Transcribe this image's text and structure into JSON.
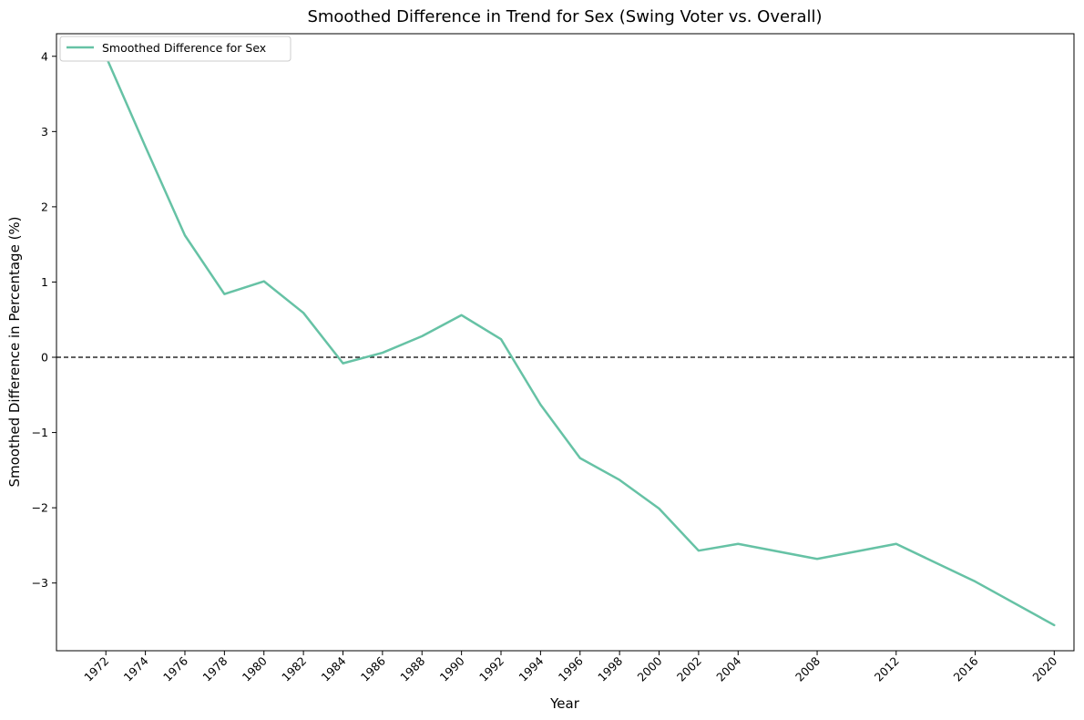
{
  "chart_data": {
    "type": "line",
    "title": "Smoothed Difference in Trend for Sex (Swing Voter vs. Overall)",
    "xlabel": "Year",
    "ylabel": "Smoothed Difference in Percentage (%)",
    "xlim": [
      1969.5,
      2021.0
    ],
    "ylim": [
      -3.9,
      4.3
    ],
    "x_ticks": [
      1972,
      1974,
      1976,
      1978,
      1980,
      1982,
      1984,
      1986,
      1988,
      1990,
      1992,
      1994,
      1996,
      1998,
      2000,
      2002,
      2004,
      2008,
      2012,
      2016,
      2020
    ],
    "x_tick_labels": [
      "1972",
      "1974",
      "1976",
      "1978",
      "1980",
      "1982",
      "1984",
      "1986",
      "1988",
      "1990",
      "1992",
      "1994",
      "1996",
      "1998",
      "2000",
      "2002",
      "2004",
      "2008",
      "2012",
      "2016",
      "2020"
    ],
    "y_ticks": [
      -3,
      -2,
      -1,
      0,
      1,
      2,
      3,
      4
    ],
    "y_tick_labels": [
      "−3",
      "−2",
      "−1",
      "0",
      "1",
      "2",
      "3",
      "4"
    ],
    "reference_line": {
      "y": 0,
      "style": "dashed",
      "color": "#000000"
    },
    "grid": false,
    "legend": {
      "position": "top-left"
    },
    "series": [
      {
        "name": "Smoothed Difference for Sex",
        "color": "#66c2a5",
        "x": [
          1972,
          1974,
          1976,
          1978,
          1980,
          1982,
          1984,
          1986,
          1988,
          1990,
          1992,
          1994,
          1996,
          1998,
          2000,
          2002,
          2004,
          2008,
          2012,
          2016,
          2020
        ],
        "y": [
          4.0,
          2.8,
          1.62,
          0.84,
          1.01,
          0.59,
          -0.08,
          0.06,
          0.28,
          0.56,
          0.24,
          -0.63,
          -1.34,
          -1.63,
          -2.01,
          -2.57,
          -2.48,
          -2.68,
          -2.48,
          -2.98,
          -3.56
        ]
      }
    ]
  }
}
